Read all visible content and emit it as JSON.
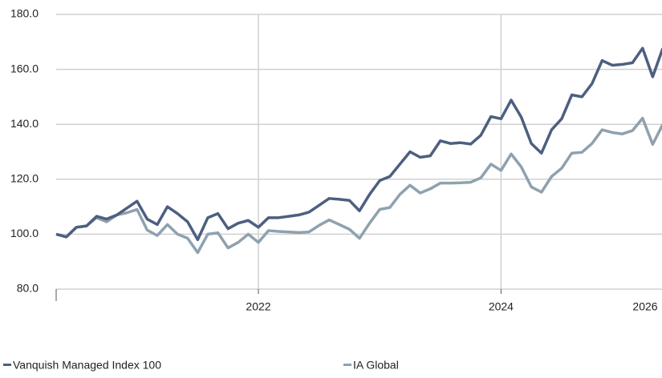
{
  "chart_data": {
    "type": "line",
    "x": [
      0,
      1,
      2,
      3,
      4,
      5,
      6,
      7,
      8,
      9,
      10,
      11,
      12,
      13,
      14,
      15,
      16,
      17,
      18,
      19,
      20,
      21,
      22,
      23,
      24,
      25,
      26,
      27,
      28,
      29,
      30,
      31,
      32,
      33,
      34,
      35,
      36,
      37,
      38,
      39,
      40,
      41,
      42,
      43,
      44,
      45,
      46,
      47,
      48,
      49,
      50,
      51,
      52,
      53,
      54,
      55,
      56,
      57,
      58,
      59,
      60
    ],
    "xlim": [
      0,
      60
    ],
    "xticks": [
      {
        "value": 20,
        "label": "2022"
      },
      {
        "value": 44,
        "label": "2024"
      },
      {
        "value": 60,
        "label": "2026"
      }
    ],
    "ylim": [
      80,
      180
    ],
    "yticks": [
      {
        "value": 80,
        "label": "80.0"
      },
      {
        "value": 100,
        "label": "100.0"
      },
      {
        "value": 120,
        "label": "120.0"
      },
      {
        "value": 140,
        "label": "140.0"
      },
      {
        "value": 160,
        "label": "160.0"
      },
      {
        "value": 180,
        "label": "180.0"
      }
    ],
    "grid": true,
    "legend": "bottom",
    "series": [
      {
        "name": "Vanquish Managed Index 100",
        "color": "#4d5f80",
        "values": [
          100,
          99,
          102.5,
          103,
          106.5,
          105.5,
          107,
          109.5,
          112,
          105.5,
          103.5,
          110,
          107.5,
          104.5,
          98,
          106,
          107.5,
          102,
          104,
          105,
          102.5,
          106,
          106,
          106.5,
          107,
          108,
          110.5,
          113,
          112.7,
          112.3,
          108.5,
          114.5,
          119.5,
          121,
          125.5,
          130,
          128,
          128.5,
          134,
          133,
          133.3,
          132.8,
          136,
          142.8,
          142,
          148.8,
          142.6,
          133,
          129.5,
          138,
          142,
          150.7,
          150,
          154.8,
          163.2,
          161.5,
          161.8,
          162.4,
          167.7,
          157.3,
          167.7
        ]
      },
      {
        "name": "IA Global",
        "color": "#8fa1ae",
        "values": [
          100,
          99,
          102.5,
          103,
          106,
          104.5,
          107,
          107.8,
          109,
          101.5,
          99.5,
          103.5,
          100,
          98.5,
          93.3,
          100,
          100.5,
          95,
          97,
          100,
          97,
          101.3,
          101,
          100.8,
          100.6,
          100.8,
          103.2,
          105.2,
          103.5,
          101.8,
          98.5,
          104,
          109,
          109.7,
          114.5,
          117.8,
          115,
          116.5,
          118.6,
          118.6,
          118.7,
          118.9,
          120.5,
          125.5,
          123.2,
          129.2,
          124.5,
          117.2,
          115.3,
          121,
          124,
          129.5,
          129.8,
          133,
          138,
          137,
          136.5,
          137.7,
          142.2,
          132.7,
          140
        ]
      }
    ]
  }
}
